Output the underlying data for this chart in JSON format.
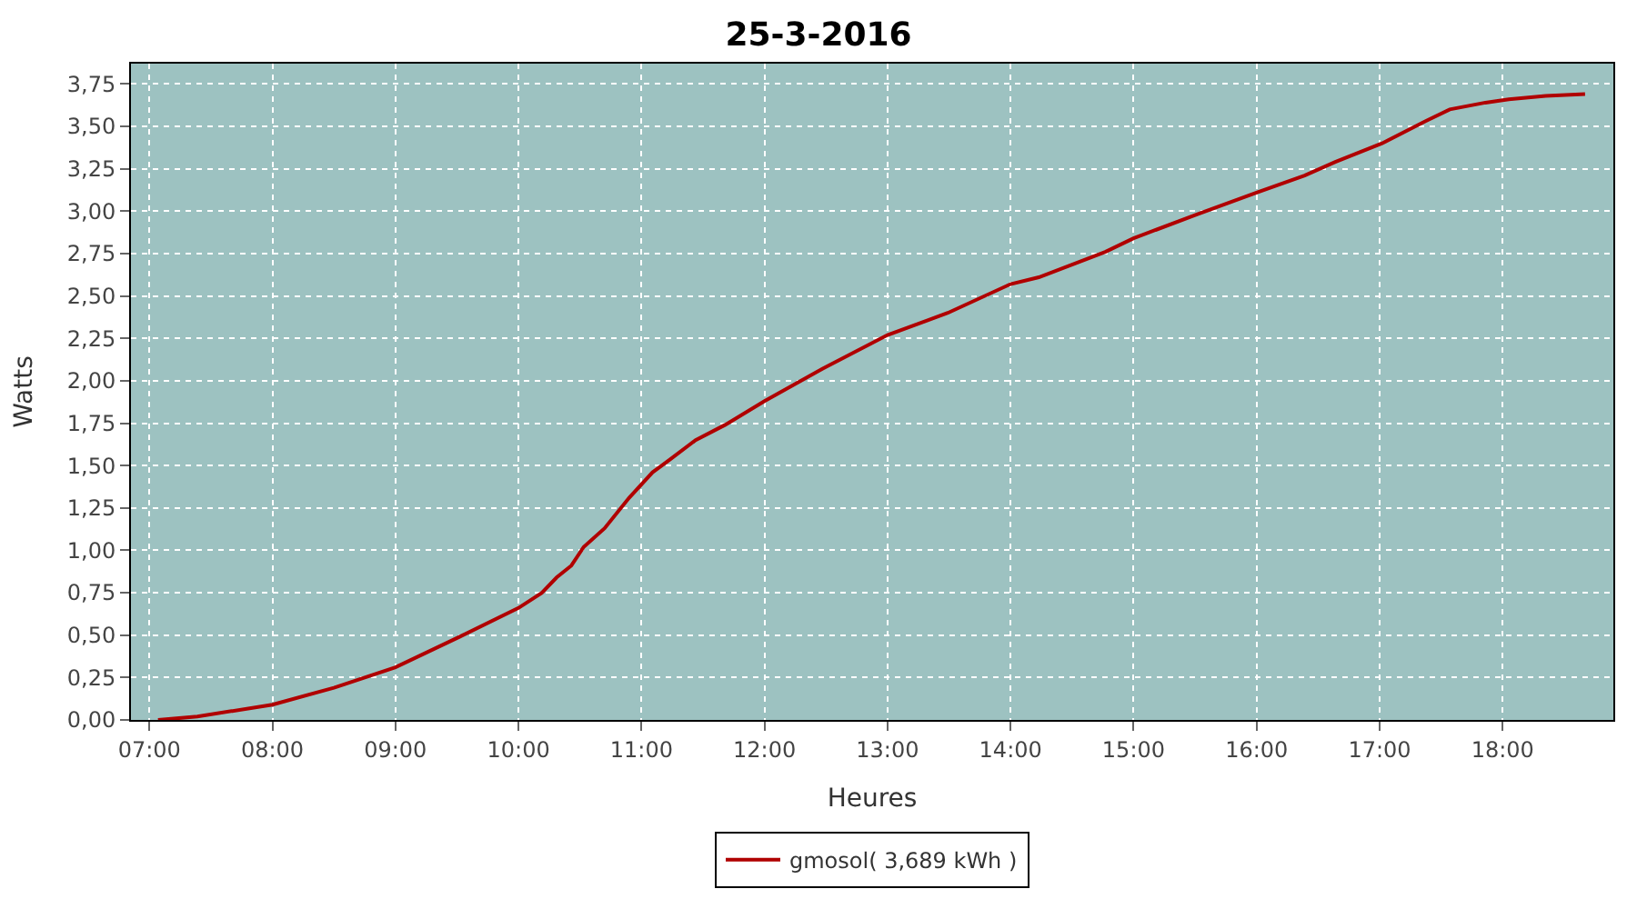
{
  "chart_data": {
    "type": "line",
    "title": "25-3-2016",
    "xlabel": "Heures",
    "ylabel": "Watts",
    "x": [
      7.07,
      7.39,
      8.0,
      8.5,
      9.0,
      9.52,
      10.0,
      10.19,
      10.31,
      10.43,
      10.53,
      10.7,
      10.9,
      11.09,
      11.24,
      11.44,
      11.68,
      12.0,
      12.47,
      13.0,
      13.49,
      14.0,
      14.23,
      14.77,
      15.0,
      15.51,
      16.0,
      16.39,
      16.64,
      17.02,
      17.37,
      17.57,
      17.86,
      18.05,
      18.35,
      18.67
    ],
    "series": [
      {
        "name": "gmosol( 3,689 kWh )",
        "color": "#b00000",
        "values": [
          0,
          0.02,
          0.09,
          0.19,
          0.31,
          0.49,
          0.66,
          0.75,
          0.84,
          0.91,
          1.02,
          1.13,
          1.31,
          1.46,
          1.54,
          1.65,
          1.74,
          1.88,
          2.07,
          2.27,
          2.4,
          2.57,
          2.61,
          2.76,
          2.84,
          2.98,
          3.11,
          3.21,
          3.29,
          3.4,
          3.53,
          3.6,
          3.64,
          3.66,
          3.68,
          3.69
        ]
      }
    ],
    "xlim": [
      6.85,
      18.9
    ],
    "xticks": [
      {
        "value": 7,
        "label": "07:00"
      },
      {
        "value": 8,
        "label": "08:00"
      },
      {
        "value": 9,
        "label": "09:00"
      },
      {
        "value": 10,
        "label": "10:00"
      },
      {
        "value": 11,
        "label": "11:00"
      },
      {
        "value": 12,
        "label": "12:00"
      },
      {
        "value": 13,
        "label": "13:00"
      },
      {
        "value": 14,
        "label": "14:00"
      },
      {
        "value": 15,
        "label": "15:00"
      },
      {
        "value": 16,
        "label": "16:00"
      },
      {
        "value": 17,
        "label": "17:00"
      },
      {
        "value": 18,
        "label": "18:00"
      }
    ],
    "ylim": [
      0,
      3.87
    ],
    "yticks": [
      {
        "value": 0,
        "label": "0,00"
      },
      {
        "value": 0.25,
        "label": "0,25"
      },
      {
        "value": 0.5,
        "label": "0,50"
      },
      {
        "value": 0.75,
        "label": "0,75"
      },
      {
        "value": 1,
        "label": "1,00"
      },
      {
        "value": 1.25,
        "label": "1,25"
      },
      {
        "value": 1.5,
        "label": "1,50"
      },
      {
        "value": 1.75,
        "label": "1,75"
      },
      {
        "value": 2,
        "label": "2,00"
      },
      {
        "value": 2.25,
        "label": "2,25"
      },
      {
        "value": 2.5,
        "label": "2,50"
      },
      {
        "value": 2.75,
        "label": "2,75"
      },
      {
        "value": 3,
        "label": "3,00"
      },
      {
        "value": 3.25,
        "label": "3,25"
      },
      {
        "value": 3.5,
        "label": "3,50"
      },
      {
        "value": 3.75,
        "label": "3,75"
      }
    ],
    "grid": true,
    "legend": "bottom",
    "marker": "none",
    "line_style": "solid"
  }
}
